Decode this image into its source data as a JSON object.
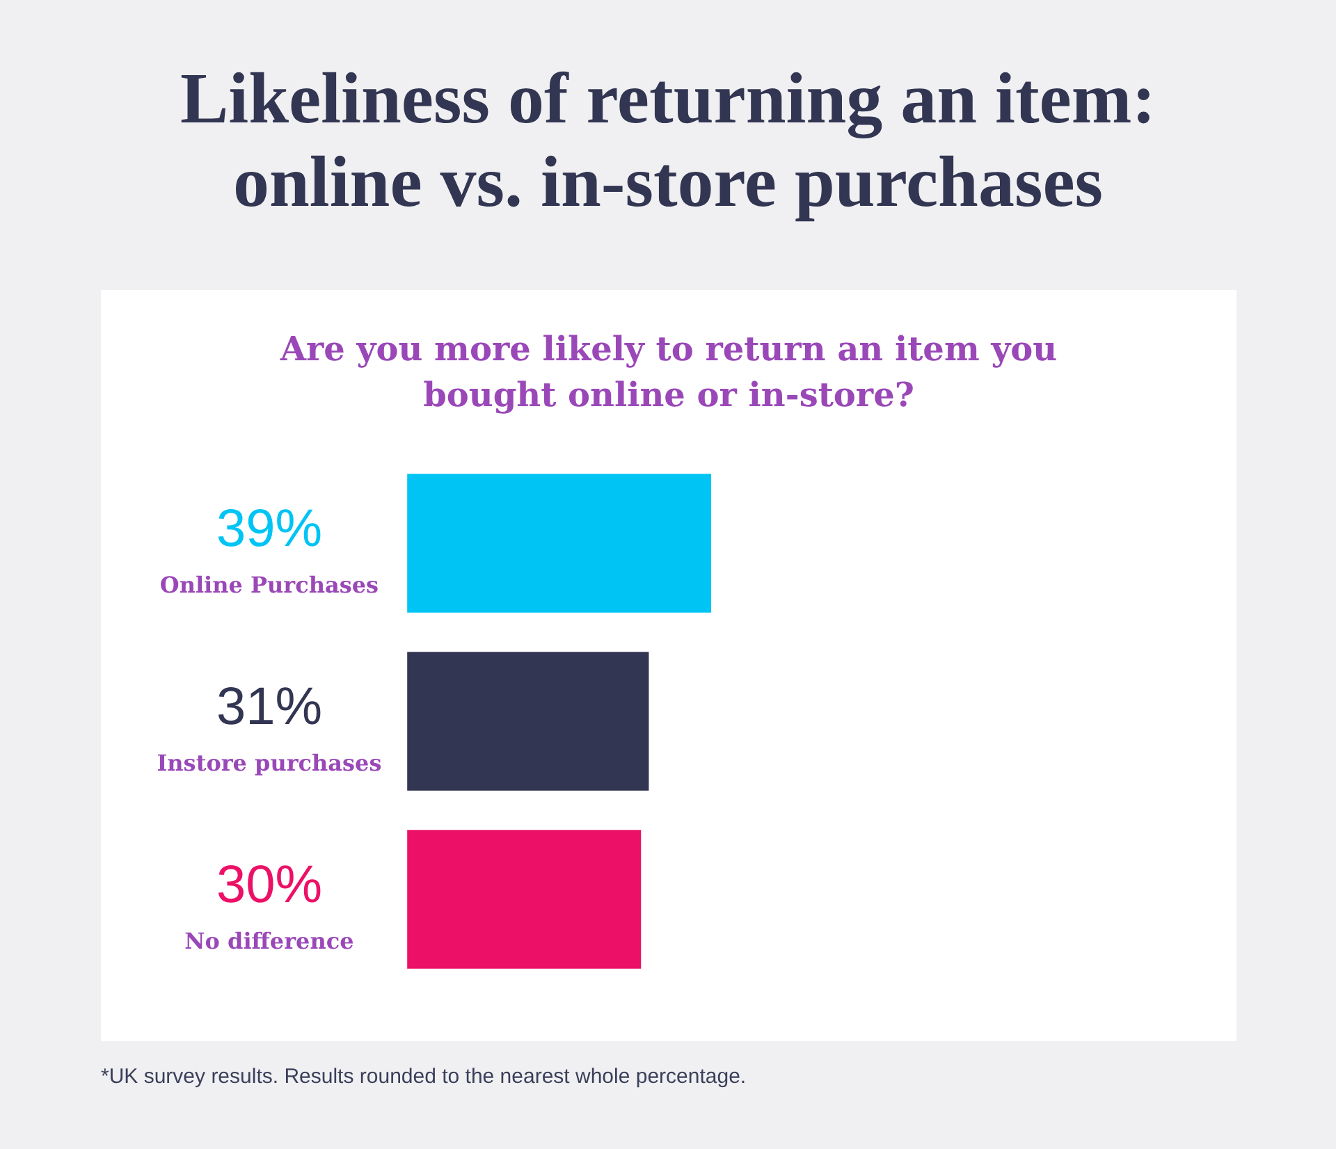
{
  "chart_data": {
    "type": "bar",
    "orientation": "horizontal",
    "title": "Likeliness of returning an item: online vs. in-store purchases",
    "subtitle": "Are you more likely to return an item you bought online or in-store?",
    "categories": [
      "Online Purchases",
      "Instore purchases",
      "No difference"
    ],
    "values": [
      39,
      31,
      30
    ],
    "colors": [
      "#00c4f4",
      "#323652",
      "#ec1166"
    ],
    "value_labels": [
      "39%",
      "31%",
      "30%"
    ],
    "tick_labels": "y",
    "annotations": [
      "*UK survey results. Results rounded to the nearest whole percentage."
    ]
  }
}
